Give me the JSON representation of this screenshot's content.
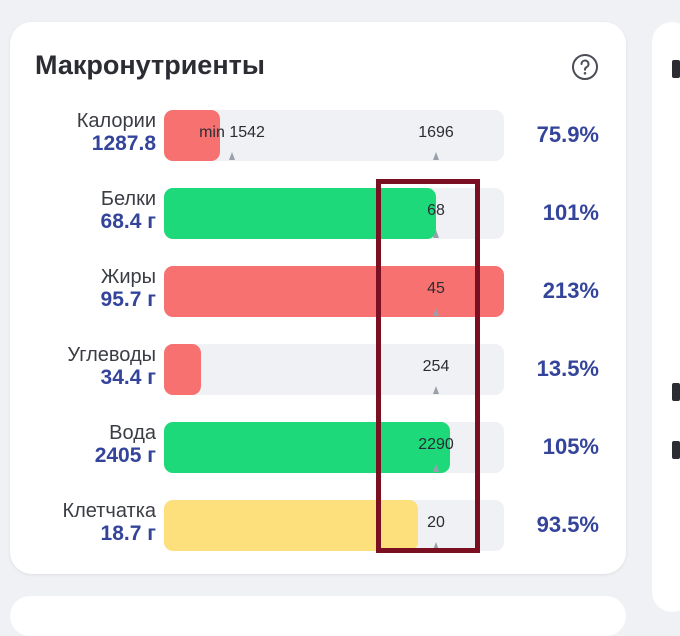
{
  "card": {
    "title": "Макронутриенты",
    "help_icon": "question-circle-icon"
  },
  "colors": {
    "red": "#f87171",
    "green": "#1ed97a",
    "yellow": "#fde07b",
    "track": "#f0f1f4",
    "value_text": "#33449a",
    "highlight_box": "#7a0f22"
  },
  "rows": [
    {
      "name": "Калории",
      "value": "1287.8",
      "percent": "75.9%",
      "fill_fraction": 0.165,
      "color": "red",
      "markers": [
        {
          "label": "min 1542",
          "pos": 0.2
        },
        {
          "label": "1696",
          "pos": 0.8
        }
      ]
    },
    {
      "name": "Белки",
      "value": "68.4 г",
      "percent": "101%",
      "fill_fraction": 0.8,
      "color": "green",
      "markers": [
        {
          "label": "68",
          "pos": 0.8
        }
      ]
    },
    {
      "name": "Жиры",
      "value": "95.7 г",
      "percent": "213%",
      "fill_fraction": 1.0,
      "color": "red",
      "markers": [
        {
          "label": "45",
          "pos": 0.8
        }
      ]
    },
    {
      "name": "Углеводы",
      "value": "34.4 г",
      "percent": "13.5%",
      "fill_fraction": 0.108,
      "color": "red",
      "markers": [
        {
          "label": "254",
          "pos": 0.8
        }
      ]
    },
    {
      "name": "Вода",
      "value": "2405 г",
      "percent": "105%",
      "fill_fraction": 0.84,
      "color": "green",
      "markers": [
        {
          "label": "2290",
          "pos": 0.8
        }
      ]
    },
    {
      "name": "Клетчатка",
      "value": "18.7 г",
      "percent": "93.5%",
      "fill_fraction": 0.748,
      "color": "yellow",
      "markers": [
        {
          "label": "20",
          "pos": 0.8
        }
      ]
    }
  ]
}
